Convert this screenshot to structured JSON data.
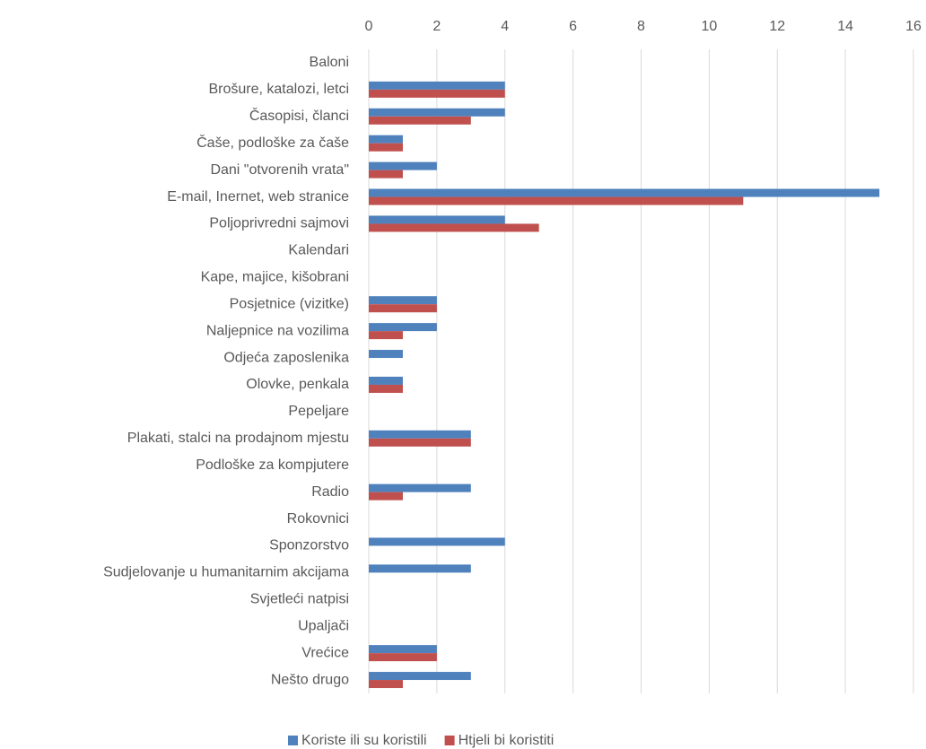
{
  "chart_data": {
    "type": "hbar",
    "categories": [
      "Baloni",
      "Brošure, katalozi, letci",
      "Časopisi, članci",
      "Čaše, podloške za čaše",
      "Dani \"otvorenih vrata\"",
      "E-mail, Inernet, web stranice",
      "Poljoprivredni sajmovi",
      "Kalendari",
      "Kape, majice, kišobrani",
      "Posjetnice (vizitke)",
      "Naljepnice na vozilima",
      "Odjeća zaposlenika",
      "Olovke, penkala",
      "Pepeljare",
      "Plakati, stalci na prodajnom mjestu",
      "Podloške za kompjutere",
      "Radio",
      "Rokovnici",
      "Sponzorstvo",
      "Sudjelovanje u humanitarnim akcijama",
      "Svjetleći natpisi",
      "Upaljači",
      "Vrećice",
      "Nešto drugo"
    ],
    "series": [
      {
        "name": "Koriste ili su koristili",
        "color": "#4f81bd",
        "values": [
          0,
          4,
          4,
          1,
          2,
          15,
          4,
          0,
          0,
          2,
          2,
          1,
          1,
          0,
          3,
          0,
          3,
          0,
          4,
          3,
          0,
          0,
          2,
          3
        ]
      },
      {
        "name": "Htjeli bi koristiti",
        "color": "#c0504d",
        "values": [
          0,
          4,
          3,
          1,
          1,
          11,
          5,
          0,
          0,
          2,
          1,
          0,
          1,
          0,
          3,
          0,
          1,
          0,
          0,
          0,
          0,
          0,
          2,
          1
        ]
      }
    ],
    "xlim": [
      0,
      16
    ],
    "xticks": [
      0,
      2,
      4,
      6,
      8,
      10,
      12,
      14,
      16
    ],
    "grid": true,
    "legend": "bottom"
  }
}
